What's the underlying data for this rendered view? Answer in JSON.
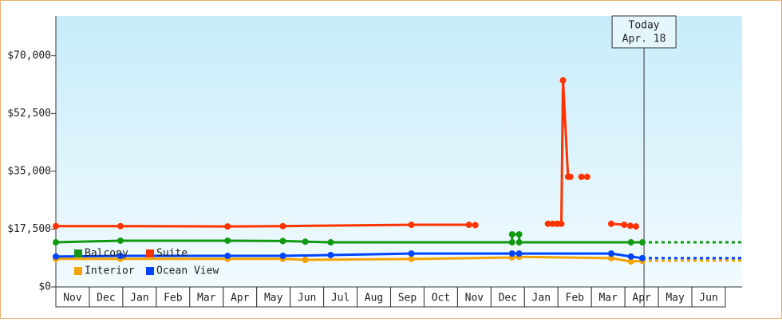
{
  "chart_data": {
    "type": "line",
    "xlim": [
      0,
      20.5
    ],
    "ylim": [
      0,
      82000
    ],
    "yticks": [
      {
        "value": 0,
        "label": "$0"
      },
      {
        "value": 17500,
        "label": "$17,500"
      },
      {
        "value": 35000,
        "label": "$35,000"
      },
      {
        "value": 52500,
        "label": "$52,500"
      },
      {
        "value": 70000,
        "label": "$70,000"
      }
    ],
    "xticks": [
      {
        "value": 0.5,
        "label": "Nov"
      },
      {
        "value": 1.5,
        "label": "Dec"
      },
      {
        "value": 2.5,
        "label": "Jan"
      },
      {
        "value": 3.5,
        "label": "Feb"
      },
      {
        "value": 4.5,
        "label": "Mar"
      },
      {
        "value": 5.5,
        "label": "Apr"
      },
      {
        "value": 6.5,
        "label": "May"
      },
      {
        "value": 7.5,
        "label": "Jun"
      },
      {
        "value": 8.5,
        "label": "Jul"
      },
      {
        "value": 9.5,
        "label": "Aug"
      },
      {
        "value": 10.5,
        "label": "Sep"
      },
      {
        "value": 11.5,
        "label": "Oct"
      },
      {
        "value": 12.5,
        "label": "Nov"
      },
      {
        "value": 13.5,
        "label": "Dec"
      },
      {
        "value": 14.5,
        "label": "Jan"
      },
      {
        "value": 15.5,
        "label": "Feb"
      },
      {
        "value": 16.5,
        "label": "Mar"
      },
      {
        "value": 17.5,
        "label": "Apr"
      },
      {
        "value": 18.5,
        "label": "May"
      },
      {
        "value": 19.5,
        "label": "Jun"
      }
    ],
    "legend": "lower left",
    "today": {
      "x": 17.57,
      "lines": [
        "Today",
        "Apr. 18"
      ]
    },
    "series": [
      {
        "name": "Balcony",
        "color": "#119911",
        "x": [
          0,
          1.93,
          5.13,
          6.78,
          7.45,
          8.21,
          13.63,
          13.63,
          13.84,
          13.84,
          17.18,
          17.52,
          20.5
        ],
        "values": [
          13500,
          14000,
          14000,
          13900,
          13700,
          13500,
          13500,
          15900,
          15900,
          13500,
          13500,
          13500,
          13500
        ]
      },
      {
        "name": "Suite",
        "color": "#ff3300",
        "x": [
          0,
          1.93,
          5.13,
          6.78,
          10.62,
          12.34,
          12.53,
          13.6,
          14.7,
          14.84,
          14.98,
          15.1,
          15.15,
          15.3,
          15.37,
          15.55,
          15.7,
          15.87,
          16.2,
          16.59,
          16.98,
          17.16,
          17.33
        ],
        "values": [
          18400,
          18400,
          18300,
          18400,
          18800,
          18800,
          18700,
          null,
          19100,
          19100,
          19100,
          19100,
          62500,
          33300,
          33300,
          null,
          33300,
          33300,
          null,
          19100,
          18800,
          18500,
          18300
        ]
      },
      {
        "name": "Interior",
        "color": "#f5a300",
        "x": [
          0,
          1.93,
          5.13,
          6.78,
          7.45,
          10.62,
          13.63,
          13.84,
          16.59,
          17.18,
          17.52,
          20.5
        ],
        "values": [
          8500,
          8500,
          8500,
          8500,
          8200,
          8450,
          8900,
          9100,
          8700,
          7700,
          7900,
          8000
        ]
      },
      {
        "name": "Ocean View",
        "color": "#0044ff",
        "x": [
          0,
          1.93,
          5.13,
          6.78,
          8.21,
          10.62,
          13.63,
          13.84,
          16.59,
          17.18,
          17.52,
          20.5
        ],
        "values": [
          9200,
          9400,
          9400,
          9400,
          9650,
          10100,
          10100,
          10100,
          10100,
          9200,
          8700,
          8700
        ]
      }
    ]
  }
}
